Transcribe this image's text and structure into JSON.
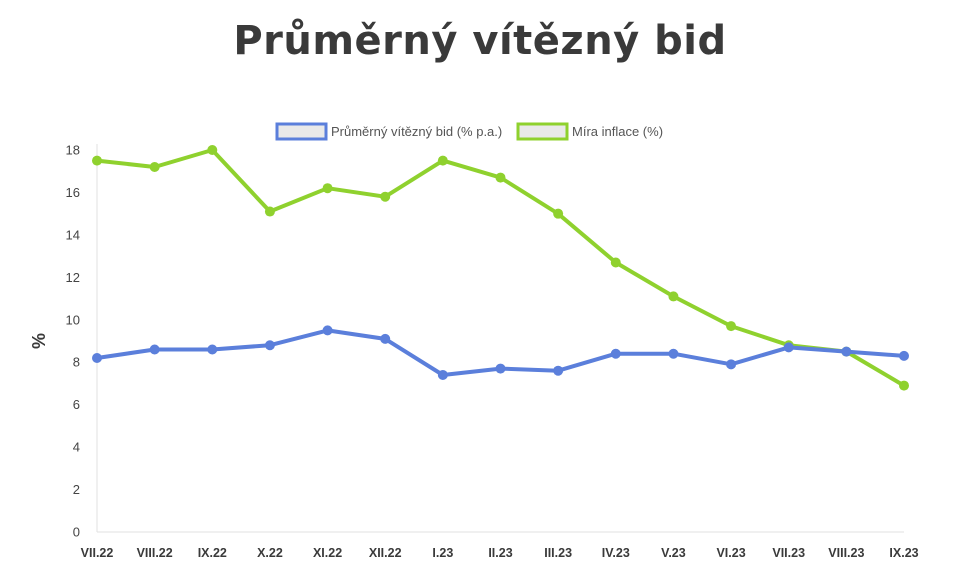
{
  "title": "Průměrný vítězný bid",
  "chart_data": {
    "type": "line",
    "title": "Průměrný vítězný bid",
    "xlabel": "",
    "ylabel": "%",
    "ylim": [
      0,
      18
    ],
    "yticks": [
      0,
      2,
      4,
      6,
      8,
      10,
      12,
      14,
      16,
      18
    ],
    "grid": false,
    "legend_position": "top-center",
    "categories": [
      "VII.22",
      "VIII.22",
      "IX.22",
      "X.22",
      "XI.22",
      "XII.22",
      "I.23",
      "II.23",
      "III.23",
      "IV.23",
      "V.23",
      "VI.23",
      "VII.23",
      "VIII.23",
      "IX.23"
    ],
    "series": [
      {
        "name": "Průměrný vítězný bid (% p.a.)",
        "color": "#5b7fdb",
        "values": [
          8.2,
          8.6,
          8.6,
          8.8,
          9.5,
          9.1,
          7.4,
          7.7,
          7.6,
          8.4,
          8.4,
          7.9,
          8.7,
          8.5,
          8.3
        ]
      },
      {
        "name": "Míra inflace (%)",
        "color": "#8fd12e",
        "values": [
          17.5,
          17.2,
          18.0,
          15.1,
          16.2,
          15.8,
          17.5,
          16.7,
          15.0,
          12.7,
          11.1,
          9.7,
          8.8,
          8.5,
          6.9
        ]
      }
    ]
  }
}
